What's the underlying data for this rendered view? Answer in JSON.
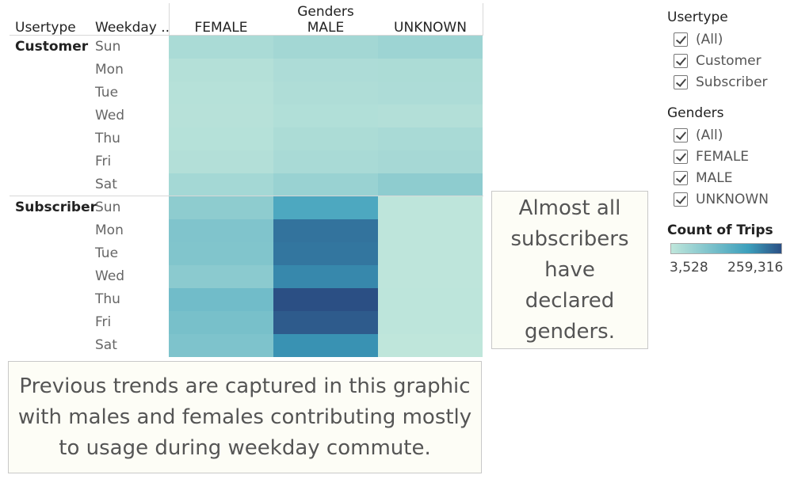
{
  "chart_data": {
    "type": "heatmap",
    "title": "",
    "column_header": "Genders",
    "row_headers": [
      "Usertype",
      "Weekday .."
    ],
    "columns": [
      "FEMALE",
      "MALE",
      "UNKNOWN"
    ],
    "groups": [
      {
        "usertype": "Customer",
        "weekdays": [
          "Sun",
          "Mon",
          "Tue",
          "Wed",
          "Thu",
          "Fri",
          "Sat"
        ],
        "values": [
          [
            32000,
            42000,
            50000
          ],
          [
            18000,
            28000,
            30000
          ],
          [
            16000,
            26000,
            28000
          ],
          [
            15000,
            22000,
            20000
          ],
          [
            17000,
            30000,
            33000
          ],
          [
            20000,
            33000,
            38000
          ],
          [
            40000,
            55000,
            70000
          ]
        ]
      },
      {
        "usertype": "Subscriber",
        "weekdays": [
          "Sun",
          "Mon",
          "Tue",
          "Wed",
          "Thu",
          "Fri",
          "Sat"
        ],
        "values": [
          [
            70000,
            160000,
            5000
          ],
          [
            90000,
            225000,
            5500
          ],
          [
            88000,
            222000,
            5500
          ],
          [
            75000,
            205000,
            5500
          ],
          [
            110000,
            259316,
            5800
          ],
          [
            100000,
            248000,
            5600
          ],
          [
            92000,
            195000,
            3528
          ]
        ]
      }
    ],
    "color_scale": {
      "label": "Count of Trips",
      "min": 3528,
      "max": 259316,
      "min_label": "3,528",
      "max_label": "259,316",
      "min_color": "#bfe6db",
      "mid_color": "#3c9fbc",
      "max_color": "#2b4f84"
    }
  },
  "filters": {
    "usertype": {
      "title": "Usertype",
      "items": [
        {
          "label": "(All)",
          "checked": true
        },
        {
          "label": "Customer",
          "checked": true
        },
        {
          "label": "Subscriber",
          "checked": true
        }
      ]
    },
    "genders": {
      "title": "Genders",
      "items": [
        {
          "label": "(All)",
          "checked": true
        },
        {
          "label": "FEMALE",
          "checked": true
        },
        {
          "label": "MALE",
          "checked": true
        },
        {
          "label": "UNKNOWN",
          "checked": true
        }
      ]
    }
  },
  "annotations": {
    "subscribers_note": "Almost all subscribers have declared genders.",
    "trends_note": "Previous trends are captured in this graphic with males and females contributing mostly to usage during weekday commute."
  }
}
